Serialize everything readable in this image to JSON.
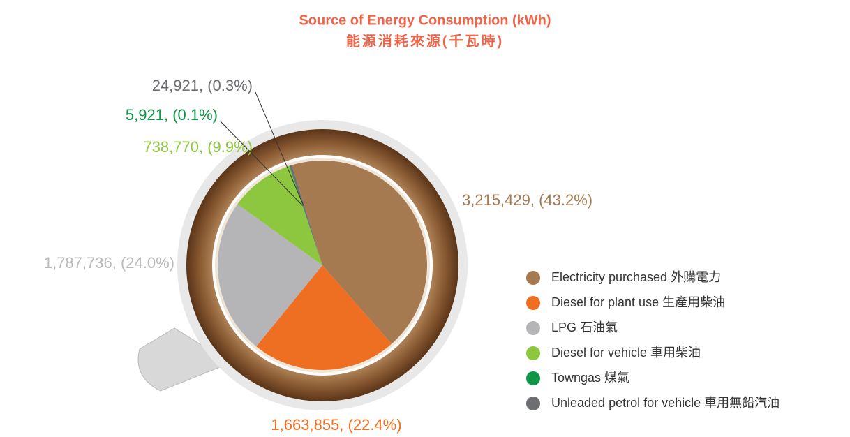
{
  "chart_data": {
    "type": "pie",
    "title": "Source of Energy Consumption (kWh)",
    "subtitle": "能源消耗來源(千瓦時)",
    "categories": [
      "Electricity purchased 外購電力",
      "Diesel for plant use 生產用柴油",
      "LPG 石油氣",
      "Diesel for vehicle 車用柴油",
      "Towngas 煤氣",
      "Unleaded petrol for vehicle 車用無鉛汽油"
    ],
    "values": [
      3215429,
      1663855,
      1787736,
      738770,
      5921,
      24921
    ],
    "value_labels": [
      "3,215,429, (43.2%)",
      "1,663,855, (22.4%)",
      "1,787,736, (24.0%)",
      "738,770, (9.9%)",
      "5,921, (0.1%)",
      "24,921, (0.3%)"
    ],
    "colors": [
      "#a57a50",
      "#ef6f22",
      "#b5b5b8",
      "#8dc63f",
      "#0f9548",
      "#6d6e71"
    ]
  }
}
